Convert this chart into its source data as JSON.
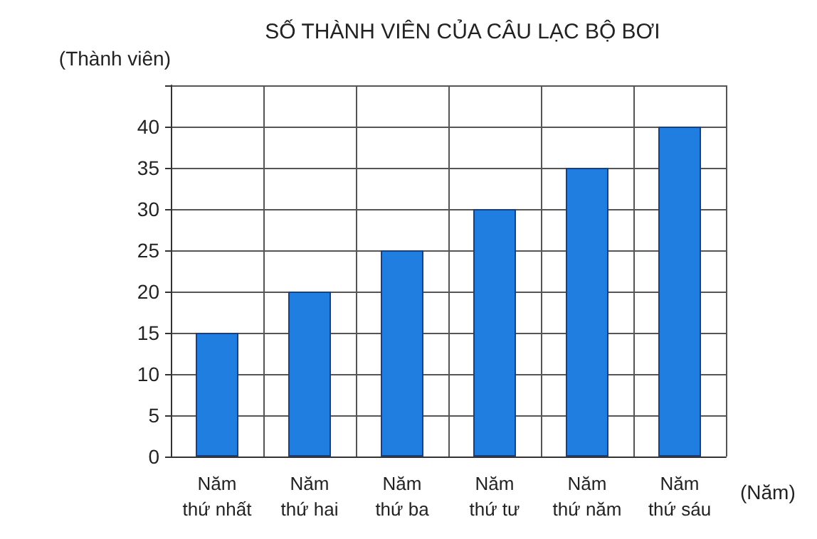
{
  "chart_data": {
    "type": "bar",
    "title": "SỐ THÀNH VIÊN CỦA CÂU LẠC BỘ BƠI",
    "ylabel": "(Thành viên)",
    "xlabel": "(Năm)",
    "categories": [
      "Năm thứ nhất",
      "Năm thứ hai",
      "Năm thứ ba",
      "Năm thứ tư",
      "Năm thứ năm",
      "Năm thứ sáu"
    ],
    "values": [
      15,
      20,
      25,
      30,
      35,
      40
    ],
    "color": "#1f7ee0",
    "ylim": [
      0,
      45
    ],
    "yticks": [
      0,
      5,
      10,
      15,
      20,
      25,
      30,
      35,
      40,
      {
        "value": 45,
        "label": null
      }
    ],
    "grid": true
  }
}
